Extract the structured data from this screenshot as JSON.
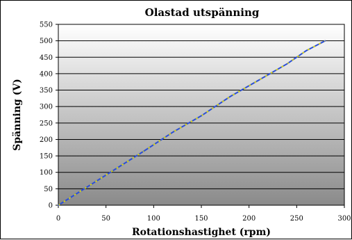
{
  "chart_data": {
    "type": "line",
    "title": "Olastad utspänning",
    "xlabel": "Rotationshastighet (rpm)",
    "ylabel": "Spänning (V)",
    "xlim": [
      0,
      300
    ],
    "ylim": [
      0,
      550
    ],
    "x_ticks": [
      "0",
      "50",
      "100",
      "150",
      "200",
      "250",
      "300"
    ],
    "y_ticks": [
      "0",
      "50",
      "100",
      "150",
      "200",
      "250",
      "300",
      "350",
      "400",
      "450",
      "500",
      "550"
    ],
    "grid": "horizontal",
    "legend": "none",
    "series": [
      {
        "x": [
          0,
          30,
          60,
          90,
          120,
          150,
          180,
          210,
          240,
          260,
          280
        ],
        "values": [
          0,
          55,
          110,
          165,
          222,
          272,
          330,
          380,
          430,
          470,
          500
        ],
        "color": "#2b4fd6",
        "dash_color": "#e8e000"
      }
    ],
    "background_gradient": [
      "#ffffff",
      "#8a8a8a"
    ]
  }
}
